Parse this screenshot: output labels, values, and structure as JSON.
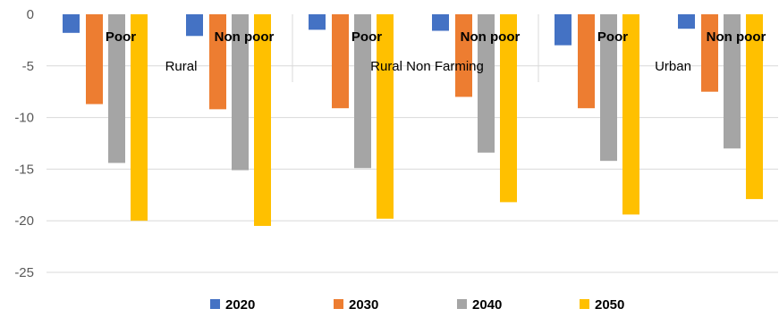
{
  "chart_data": {
    "type": "bar",
    "groups": [
      {
        "label": "Rural",
        "subgroups": [
          "Poor",
          "Non poor"
        ]
      },
      {
        "label": "Rural Non Farming",
        "subgroups": [
          "Poor",
          "Non poor"
        ]
      },
      {
        "label": "Urban",
        "subgroups": [
          "Poor",
          "Non poor"
        ]
      }
    ],
    "categories": [
      "Rural Poor",
      "Rural Non poor",
      "Rural Non Farming Poor",
      "Rural Non Farming Non poor",
      "Urban Poor",
      "Urban Non poor"
    ],
    "series": [
      {
        "name": "2020",
        "color": "#4472C4",
        "values": [
          -1.8,
          -2.1,
          -1.5,
          -1.6,
          -3.0,
          -1.4
        ]
      },
      {
        "name": "2030",
        "color": "#ED7D31",
        "values": [
          -8.7,
          -9.2,
          -9.1,
          -8.0,
          -9.1,
          -7.5
        ]
      },
      {
        "name": "2040",
        "color": "#A5A5A5",
        "values": [
          -14.4,
          -15.1,
          -14.9,
          -13.4,
          -14.2,
          -13.0
        ]
      },
      {
        "name": "2050",
        "color": "#FFC000",
        "values": [
          -20.0,
          -20.5,
          -19.8,
          -18.2,
          -19.4,
          -17.9
        ]
      }
    ],
    "yticks": [
      "0",
      "-5",
      "-10",
      "-15",
      "-20",
      "-25"
    ],
    "ylim": [
      -25,
      0
    ],
    "legend_position": "bottom",
    "grid": true
  }
}
